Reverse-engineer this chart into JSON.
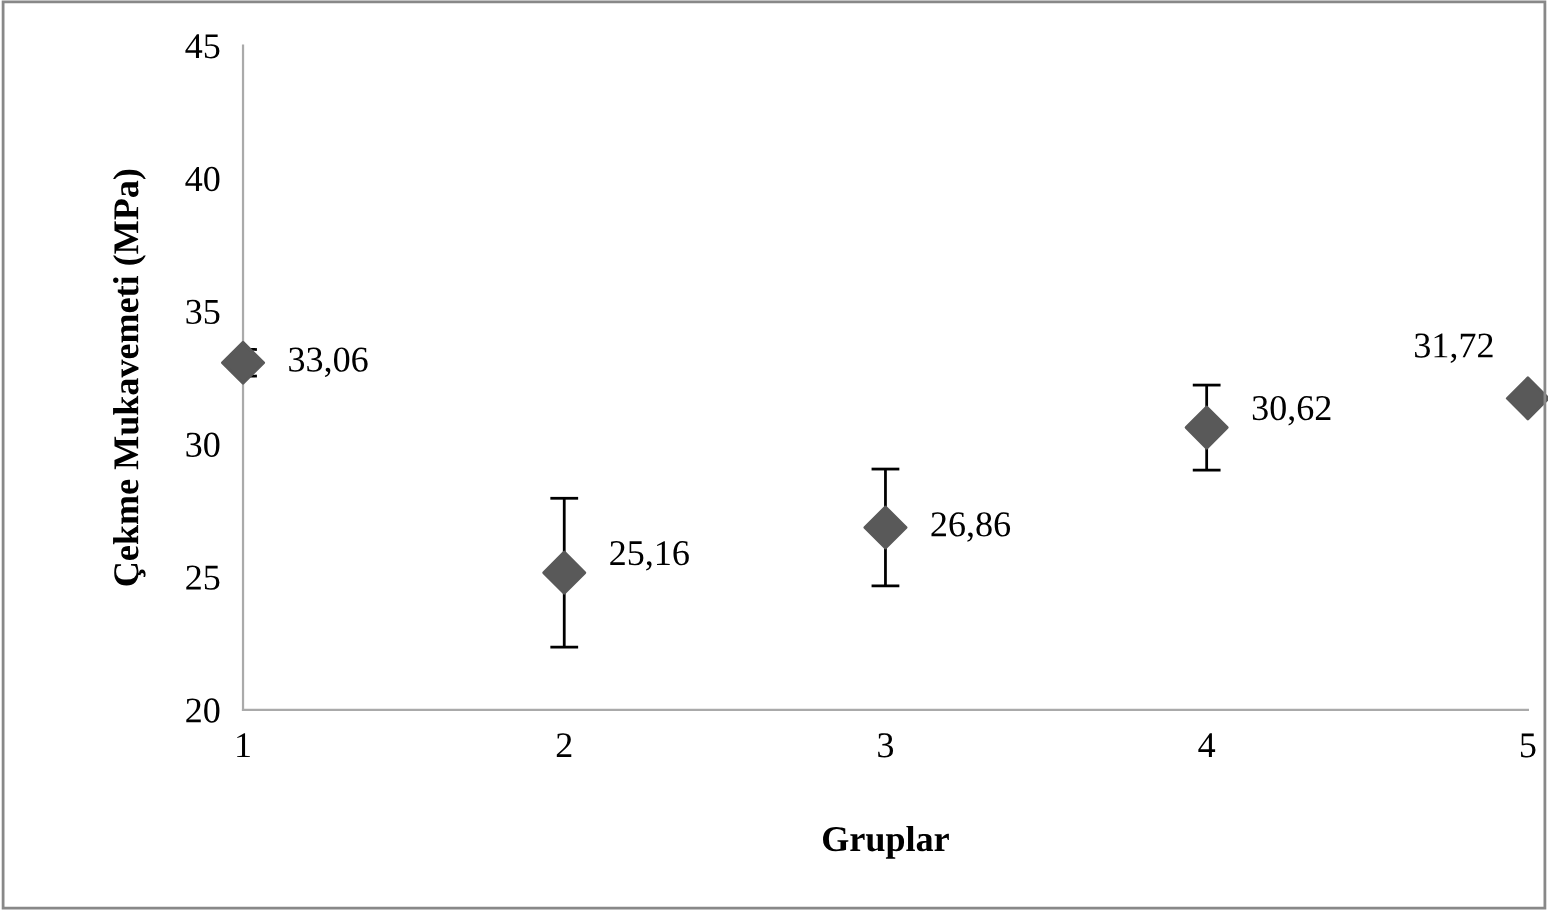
{
  "chart_data": {
    "type": "scatter",
    "xlabel": "Gruplar",
    "ylabel": "Çekme Mukavemeti (MPa)",
    "x": [
      1,
      2,
      3,
      4,
      5
    ],
    "series": [
      {
        "color": "#595959",
        "values": [
          33.06,
          25.16,
          26.86,
          30.62,
          31.72
        ],
        "errors": [
          0.5,
          2.8,
          2.2,
          1.6,
          null
        ],
        "value_labels": [
          "33,06",
          "25,16",
          "26,86",
          "30,62",
          "31,72"
        ]
      }
    ],
    "xlim": [
      1,
      5
    ],
    "xticks": [
      1,
      2,
      3,
      4,
      5
    ],
    "ylim": [
      20,
      45
    ],
    "yticks": [
      20,
      25,
      30,
      35,
      40,
      45
    ],
    "marker": "diamond",
    "grid": false,
    "legend": false
  }
}
